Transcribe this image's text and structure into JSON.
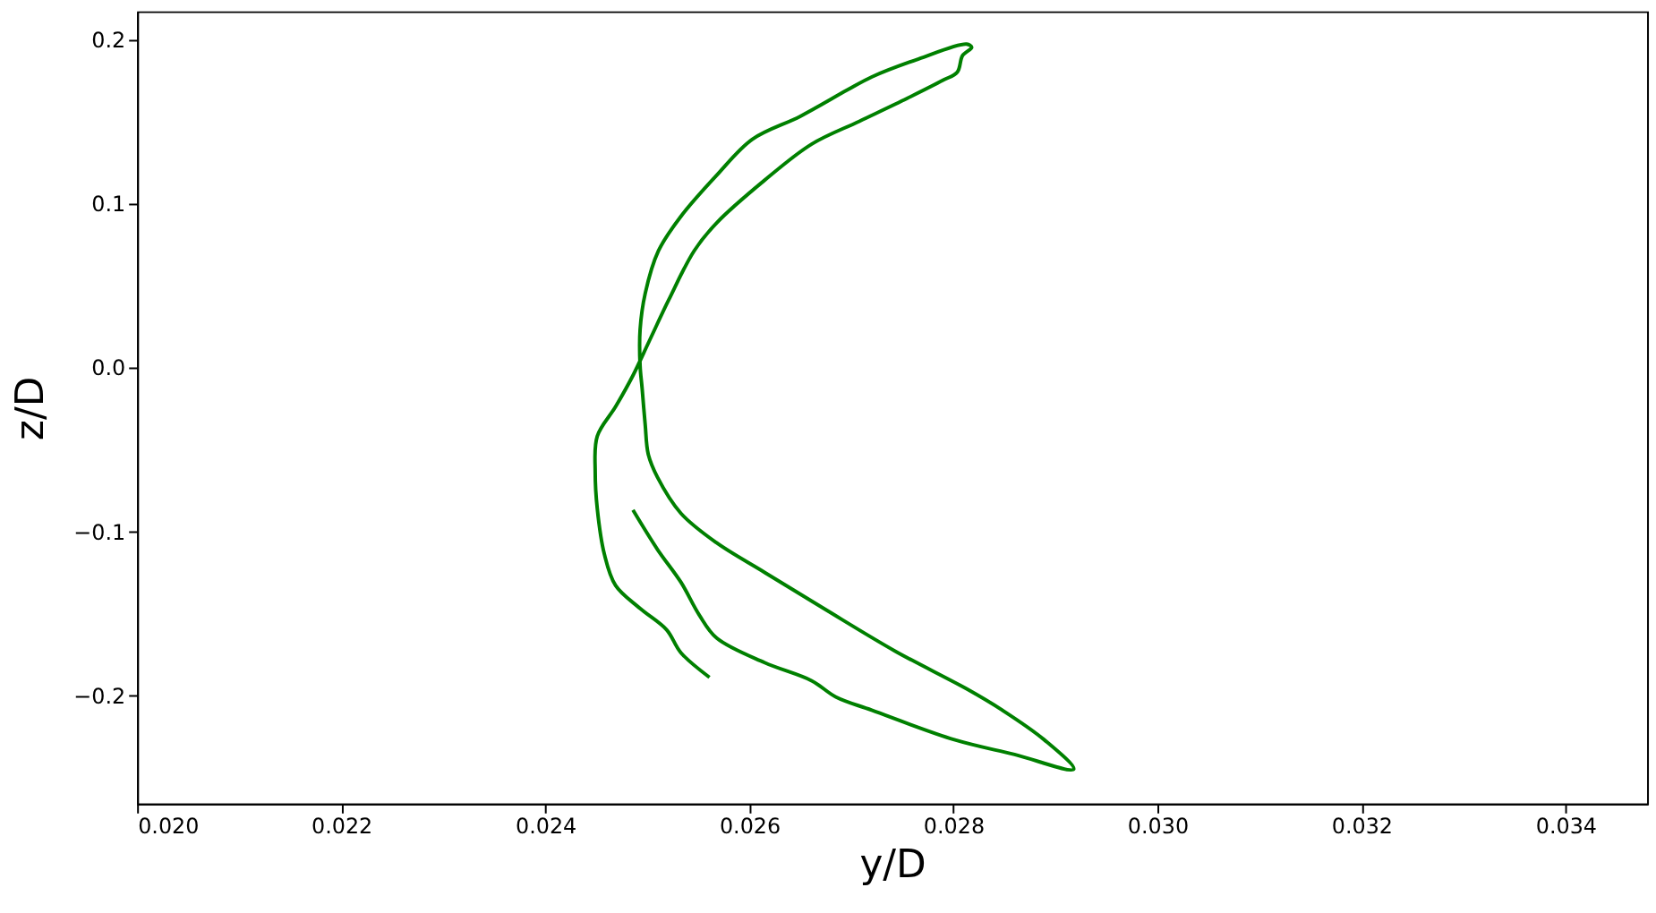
{
  "chart_data": {
    "type": "line",
    "xlabel": "y/D",
    "ylabel": "z/D",
    "x": [
      0.02486,
      0.0251,
      0.02533,
      0.02551,
      0.02568,
      0.02615,
      0.02661,
      0.02685,
      0.0272,
      0.02801,
      0.0286,
      0.02918,
      0.02889,
      0.02848,
      0.02813,
      0.02743,
      0.02673,
      0.02615,
      0.02568,
      0.02533,
      0.0251,
      0.02501,
      0.02498,
      0.02495,
      0.02493,
      0.02493,
      0.02498,
      0.02511,
      0.02533,
      0.02568,
      0.02603,
      0.0265,
      0.02696,
      0.0272,
      0.02766,
      0.02813,
      0.02818,
      0.02809,
      0.02804,
      0.0279,
      0.02755,
      0.02708,
      0.02661,
      0.02615,
      0.02568,
      0.02546,
      0.02521,
      0.02502,
      0.02486,
      0.02469,
      0.02451,
      0.02449,
      0.02451,
      0.02458,
      0.02469,
      0.02493,
      0.02519,
      0.02533,
      0.02561
    ],
    "series": [
      {
        "color": "#008000",
        "values": [
          -0.087,
          -0.111,
          -0.131,
          -0.151,
          -0.165,
          -0.18,
          -0.191,
          -0.201,
          -0.209,
          -0.227,
          -0.236,
          -0.245,
          -0.227,
          -0.209,
          -0.196,
          -0.173,
          -0.147,
          -0.125,
          -0.107,
          -0.089,
          -0.067,
          -0.053,
          -0.035,
          -0.013,
          0.001,
          0.023,
          0.045,
          0.071,
          0.092,
          0.117,
          0.139,
          0.153,
          0.169,
          0.177,
          0.188,
          0.197,
          0.195,
          0.19,
          0.18,
          0.175,
          0.164,
          0.15,
          0.136,
          0.114,
          0.088,
          0.071,
          0.041,
          0.016,
          -0.005,
          -0.024,
          -0.042,
          -0.064,
          -0.086,
          -0.114,
          -0.133,
          -0.147,
          -0.16,
          -0.174,
          -0.189
        ]
      }
    ],
    "xlim": [
      0.02,
      0.0348
    ],
    "ylim": [
      -0.266,
      0.217
    ],
    "xticks": [
      {
        "value": 0.02,
        "label": "0.020"
      },
      {
        "value": 0.022,
        "label": "0.022"
      },
      {
        "value": 0.024,
        "label": "0.024"
      },
      {
        "value": 0.026,
        "label": "0.026"
      },
      {
        "value": 0.028,
        "label": "0.028"
      },
      {
        "value": 0.03,
        "label": "0.030"
      },
      {
        "value": 0.032,
        "label": "0.032"
      },
      {
        "value": 0.034,
        "label": "0.034"
      }
    ],
    "yticks": [
      {
        "value": -0.2,
        "label": "−0.2"
      },
      {
        "value": -0.1,
        "label": "−0.1"
      },
      {
        "value": 0,
        "label": "0.0"
      },
      0.1,
      0.2
    ],
    "grid": false,
    "line_style": "solid",
    "marker": "none"
  }
}
